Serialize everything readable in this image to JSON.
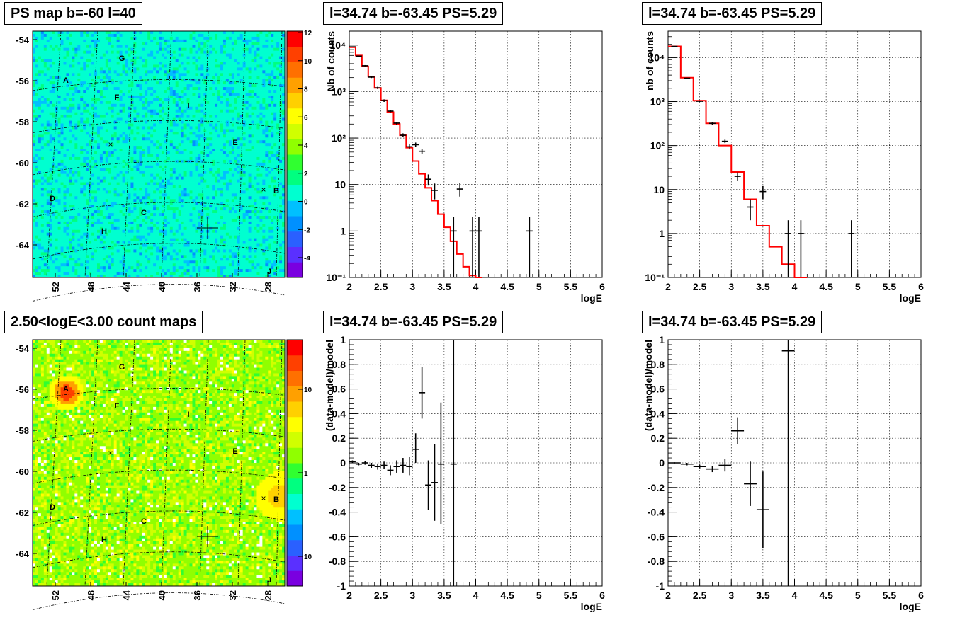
{
  "maps": [
    {
      "title": "PS map b=-60 l=40",
      "y_ticks": [
        "-54",
        "-56",
        "-58",
        "-60",
        "-62",
        "-64"
      ],
      "x_ticks": [
        "52",
        "48",
        "44",
        "40",
        "36",
        "32",
        "28"
      ],
      "colorbar_ticks": [
        "12",
        "10",
        "8",
        "6",
        "4",
        "2",
        "0",
        "-2",
        "-4"
      ],
      "colorscale": [
        "#7a00e0",
        "#5a30ff",
        "#2a60ff",
        "#0090ff",
        "#00c0ff",
        "#00ffd0",
        "#00ff80",
        "#30ff30",
        "#90ff00",
        "#d0ff00",
        "#ffff00",
        "#ffd000",
        "#ffa000",
        "#ff7000",
        "#ff4000",
        "#ff0000"
      ],
      "sources": [
        "A",
        "G",
        "F",
        "I",
        "E",
        "B",
        "D",
        "C",
        "H",
        "J"
      ],
      "style": "psmap"
    },
    {
      "title": "2.50<logE<3.00 count maps",
      "y_ticks": [
        "-54",
        "-56",
        "-58",
        "-60",
        "-62",
        "-64"
      ],
      "x_ticks": [
        "52",
        "48",
        "44",
        "40",
        "36",
        "32",
        "28"
      ],
      "colorbar_ticks": [
        "10",
        "1",
        "10⁻¹"
      ],
      "colorscale": [
        "#7a00e0",
        "#5a30ff",
        "#2a60ff",
        "#0090ff",
        "#00c0ff",
        "#00ffd0",
        "#00ff80",
        "#30ff30",
        "#90ff00",
        "#d0ff00",
        "#ffff00",
        "#ffd000",
        "#ffa000",
        "#ff7000",
        "#ff4000",
        "#ff0000"
      ],
      "sources": [
        "A",
        "G",
        "F",
        "I",
        "E",
        "B",
        "D",
        "C",
        "H",
        "J"
      ],
      "style": "countmap"
    }
  ],
  "chart_data": [
    {
      "type": "line",
      "title": "l=34.74 b=-63.45 PS=5.29",
      "xlabel": "logE",
      "ylabel": "Nb of counts",
      "xlim": [
        2,
        6
      ],
      "ylim": [
        0.1,
        20000
      ],
      "yscale": "log",
      "x_ticks": [
        "2",
        "2.5",
        "3",
        "3.5",
        "4",
        "4.5",
        "5",
        "5.5",
        "6"
      ],
      "y_ticks": [
        "10⁻¹",
        "1",
        "10",
        "10²",
        "10³",
        "10⁴"
      ],
      "grid": true,
      "model_edges": [
        2,
        2.1,
        2.2,
        2.3,
        2.4,
        2.5,
        2.6,
        2.7,
        2.8,
        2.9,
        3.0,
        3.1,
        3.2,
        3.3,
        3.4,
        3.5,
        3.6,
        3.7,
        3.8,
        3.9,
        4.0,
        4.1,
        6.0
      ],
      "model_values": [
        9000,
        6000,
        3500,
        2100,
        1200,
        650,
        360,
        200,
        115,
        62,
        32,
        17,
        8.5,
        4.5,
        2.3,
        1.2,
        0.6,
        0.32,
        0.17,
        0.11,
        0.1
      ],
      "data_points": [
        {
          "x": 2.05,
          "y": 9200,
          "ylo": 9000,
          "yhi": 9400
        },
        {
          "x": 2.15,
          "y": 5800,
          "ylo": 5650,
          "yhi": 5950
        },
        {
          "x": 2.25,
          "y": 3600,
          "ylo": 3480,
          "yhi": 3720
        },
        {
          "x": 2.35,
          "y": 2050,
          "ylo": 1960,
          "yhi": 2140
        },
        {
          "x": 2.45,
          "y": 1200,
          "ylo": 1130,
          "yhi": 1270
        },
        {
          "x": 2.55,
          "y": 640,
          "ylo": 600,
          "yhi": 680
        },
        {
          "x": 2.65,
          "y": 380,
          "ylo": 360,
          "yhi": 400
        },
        {
          "x": 2.75,
          "y": 210,
          "ylo": 196,
          "yhi": 224
        },
        {
          "x": 2.85,
          "y": 115,
          "ylo": 104,
          "yhi": 126
        },
        {
          "x": 2.95,
          "y": 65,
          "ylo": 57,
          "yhi": 73
        },
        {
          "x": 3.05,
          "y": 72,
          "ylo": 64,
          "yhi": 80
        },
        {
          "x": 3.15,
          "y": 52,
          "ylo": 45,
          "yhi": 59
        },
        {
          "x": 3.25,
          "y": 13,
          "ylo": 9.5,
          "yhi": 16.5
        },
        {
          "x": 3.35,
          "y": 7.5,
          "ylo": 4.8,
          "yhi": 10.5
        },
        {
          "x": 3.65,
          "y": 1,
          "ylo": 0.1,
          "yhi": 2
        },
        {
          "x": 3.75,
          "y": 8,
          "ylo": 5.5,
          "yhi": 10.8
        },
        {
          "x": 3.95,
          "y": 1,
          "ylo": 0.1,
          "yhi": 2
        },
        {
          "x": 4.05,
          "y": 1,
          "ylo": 0.1,
          "yhi": 2
        },
        {
          "x": 4.85,
          "y": 1,
          "ylo": 0.1,
          "yhi": 2
        }
      ]
    },
    {
      "type": "line",
      "title": "l=34.74 b=-63.45 PS=5.29",
      "xlabel": "logE",
      "ylabel": "nb of counts",
      "xlim": [
        2,
        6
      ],
      "ylim": [
        0.1,
        40000
      ],
      "yscale": "log",
      "x_ticks": [
        "2",
        "2.5",
        "3",
        "3.5",
        "4",
        "4.5",
        "5",
        "5.5",
        "6"
      ],
      "y_ticks": [
        "10⁻¹",
        "1",
        "10",
        "10²",
        "10³",
        "10⁴"
      ],
      "grid": true,
      "model_edges": [
        2,
        2.2,
        2.4,
        2.6,
        2.8,
        3.0,
        3.2,
        3.4,
        3.6,
        3.8,
        4.0,
        4.2,
        6.0
      ],
      "model_values": [
        18000,
        3500,
        1050,
        320,
        100,
        25,
        6,
        1.5,
        0.5,
        0.2,
        0.1
      ],
      "data_points": [
        {
          "x": 2.1,
          "y": 18000,
          "ylo": 17800,
          "yhi": 18200
        },
        {
          "x": 2.3,
          "y": 3400,
          "ylo": 3330,
          "yhi": 3470
        },
        {
          "x": 2.5,
          "y": 1020,
          "ylo": 980,
          "yhi": 1060
        },
        {
          "x": 2.7,
          "y": 320,
          "ylo": 300,
          "yhi": 340
        },
        {
          "x": 2.9,
          "y": 125,
          "ylo": 114,
          "yhi": 136
        },
        {
          "x": 3.1,
          "y": 20,
          "ylo": 15.5,
          "yhi": 24.5
        },
        {
          "x": 3.3,
          "y": 4,
          "ylo": 2,
          "yhi": 6
        },
        {
          "x": 3.5,
          "y": 9,
          "ylo": 6,
          "yhi": 12
        },
        {
          "x": 3.9,
          "y": 1,
          "ylo": 0.1,
          "yhi": 2
        },
        {
          "x": 4.1,
          "y": 1,
          "ylo": 0.1,
          "yhi": 2
        },
        {
          "x": 4.9,
          "y": 1,
          "ylo": 0.1,
          "yhi": 2
        }
      ]
    },
    {
      "type": "scatter",
      "title": "l=34.74 b=-63.45 PS=5.29",
      "xlabel": "logE",
      "ylabel": "(data-model)/model",
      "xlim": [
        2,
        6
      ],
      "ylim": [
        -1,
        1
      ],
      "x_ticks": [
        "2",
        "2.5",
        "3",
        "3.5",
        "4",
        "4.5",
        "5",
        "5.5",
        "6"
      ],
      "y_ticks": [
        "-1",
        "-0.8",
        "-0.6",
        "-0.4",
        "-0.2",
        "0",
        "0.2",
        "0.4",
        "0.6",
        "0.8",
        "1"
      ],
      "grid": true,
      "data_points": [
        {
          "x": 2.05,
          "y": 0.01,
          "ylo": 0.0,
          "yhi": 0.02,
          "xw": 0.05
        },
        {
          "x": 2.15,
          "y": -0.01,
          "ylo": -0.02,
          "yhi": 0.0,
          "xw": 0.05
        },
        {
          "x": 2.25,
          "y": 0.0,
          "ylo": -0.015,
          "yhi": 0.015,
          "xw": 0.05
        },
        {
          "x": 2.35,
          "y": -0.02,
          "ylo": -0.04,
          "yhi": 0.0,
          "xw": 0.05
        },
        {
          "x": 2.45,
          "y": -0.03,
          "ylo": -0.055,
          "yhi": -0.005,
          "xw": 0.05
        },
        {
          "x": 2.55,
          "y": -0.02,
          "ylo": -0.05,
          "yhi": 0.01,
          "xw": 0.05
        },
        {
          "x": 2.65,
          "y": -0.06,
          "ylo": -0.1,
          "yhi": -0.02,
          "xw": 0.05
        },
        {
          "x": 2.75,
          "y": -0.03,
          "ylo": -0.08,
          "yhi": 0.02,
          "xw": 0.05
        },
        {
          "x": 2.85,
          "y": -0.02,
          "ylo": -0.08,
          "yhi": 0.04,
          "xw": 0.05
        },
        {
          "x": 2.95,
          "y": -0.03,
          "ylo": -0.1,
          "yhi": 0.05,
          "xw": 0.05
        },
        {
          "x": 3.05,
          "y": 0.11,
          "ylo": 0.0,
          "yhi": 0.24,
          "xw": 0.05
        },
        {
          "x": 3.15,
          "y": 0.57,
          "ylo": 0.36,
          "yhi": 0.78,
          "xw": 0.05
        },
        {
          "x": 3.25,
          "y": -0.18,
          "ylo": -0.38,
          "yhi": 0.02,
          "xw": 0.05
        },
        {
          "x": 3.35,
          "y": -0.16,
          "ylo": -0.47,
          "yhi": 0.15,
          "xw": 0.05
        },
        {
          "x": 3.45,
          "y": -0.01,
          "ylo": -0.5,
          "yhi": 0.49,
          "xw": 0.05
        },
        {
          "x": 3.65,
          "y": -0.01,
          "ylo": -1.0,
          "yhi": 1.0,
          "xw": 0.05
        }
      ]
    },
    {
      "type": "scatter",
      "title": "l=34.74 b=-63.45 PS=5.29",
      "xlabel": "logE",
      "ylabel": "(data-model)/model",
      "xlim": [
        2,
        6
      ],
      "ylim": [
        -1,
        1
      ],
      "x_ticks": [
        "2",
        "2.5",
        "3",
        "3.5",
        "4",
        "4.5",
        "5",
        "5.5",
        "6"
      ],
      "y_ticks": [
        "-1",
        "-0.8",
        "-0.6",
        "-0.4",
        "-0.2",
        "0",
        "0.2",
        "0.4",
        "0.6",
        "0.8",
        "1"
      ],
      "grid": true,
      "data_points": [
        {
          "x": 2.1,
          "y": 0.0,
          "ylo": -0.005,
          "yhi": 0.005,
          "xw": 0.1
        },
        {
          "x": 2.3,
          "y": -0.01,
          "ylo": -0.02,
          "yhi": 0.0,
          "xw": 0.1
        },
        {
          "x": 2.5,
          "y": -0.03,
          "ylo": -0.045,
          "yhi": -0.015,
          "xw": 0.1
        },
        {
          "x": 2.7,
          "y": -0.05,
          "ylo": -0.075,
          "yhi": -0.025,
          "xw": 0.1
        },
        {
          "x": 2.9,
          "y": -0.02,
          "ylo": -0.07,
          "yhi": 0.03,
          "xw": 0.1
        },
        {
          "x": 3.1,
          "y": 0.26,
          "ylo": 0.15,
          "yhi": 0.37,
          "xw": 0.1
        },
        {
          "x": 3.3,
          "y": -0.17,
          "ylo": -0.35,
          "yhi": 0.01,
          "xw": 0.1
        },
        {
          "x": 3.5,
          "y": -0.38,
          "ylo": -0.69,
          "yhi": -0.07,
          "xw": 0.1
        },
        {
          "x": 3.9,
          "y": 0.91,
          "ylo": -1.0,
          "yhi": 1.0,
          "xw": 0.1
        }
      ]
    }
  ]
}
